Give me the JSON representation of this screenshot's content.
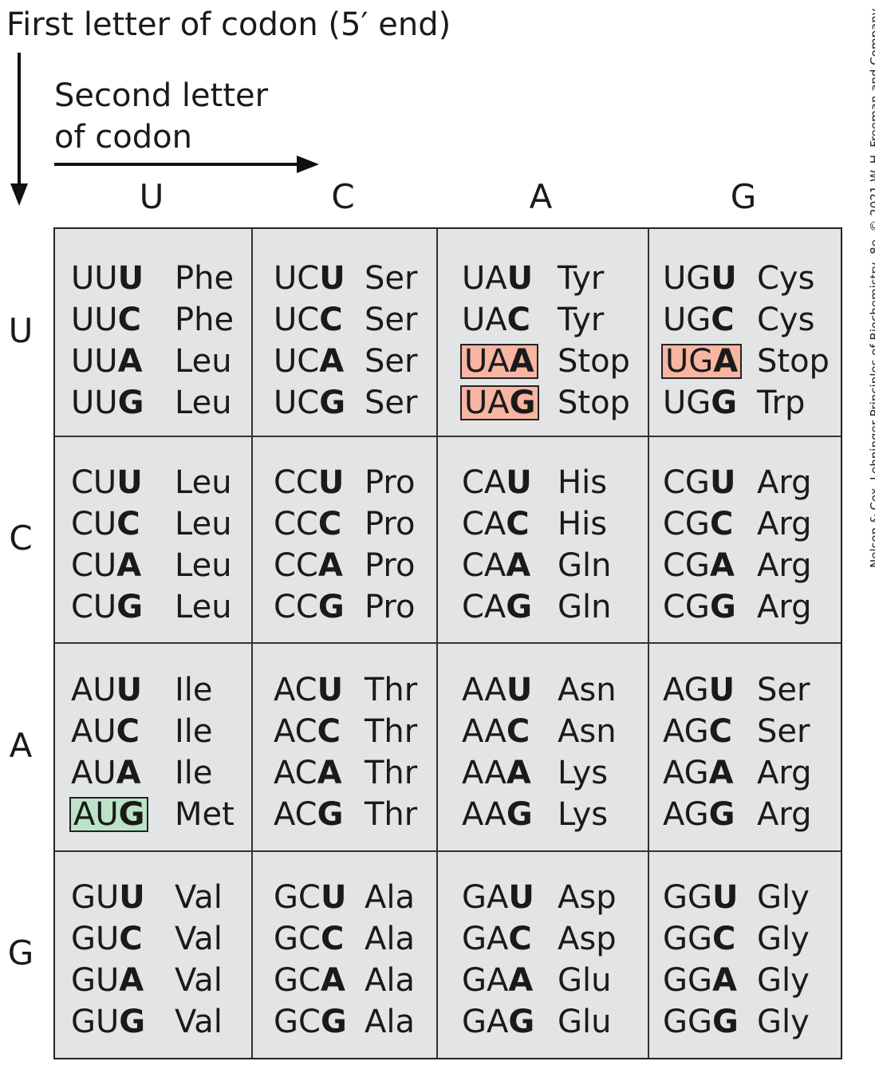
{
  "labels": {
    "first_letter": "First  letter of codon (5′ end)",
    "second_letter_line1": "Second letter",
    "second_letter_line2": "of codon"
  },
  "columns": [
    "U",
    "C",
    "A",
    "G"
  ],
  "rows": [
    "U",
    "C",
    "A",
    "G"
  ],
  "copyright": "Nelson & Cox, Lehninger Principles of Biochemistry, 8e, © 2021 W. H. Freeman and Company",
  "colors": {
    "stop_highlight": "#f7b5a2",
    "start_highlight": "#bde3c6",
    "cell_bg": "#e3e4e6"
  },
  "cells": [
    [
      {
        "codons": [
          {
            "p": "UU",
            "t": "U",
            "aa": "Phe"
          },
          {
            "p": "UU",
            "t": "C",
            "aa": "Phe"
          },
          {
            "p": "UU",
            "t": "A",
            "aa": "Leu"
          },
          {
            "p": "UU",
            "t": "G",
            "aa": "Leu"
          }
        ]
      },
      {
        "codons": [
          {
            "p": "UC",
            "t": "U",
            "aa": "Ser"
          },
          {
            "p": "UC",
            "t": "C",
            "aa": "Ser"
          },
          {
            "p": "UC",
            "t": "A",
            "aa": "Ser"
          },
          {
            "p": "UC",
            "t": "G",
            "aa": "Ser"
          }
        ]
      },
      {
        "codons": [
          {
            "p": "UA",
            "t": "U",
            "aa": "Tyr"
          },
          {
            "p": "UA",
            "t": "C",
            "aa": "Tyr"
          },
          {
            "p": "UA",
            "t": "A",
            "aa": "Stop",
            "mark": "stop"
          },
          {
            "p": "UA",
            "t": "G",
            "aa": "Stop",
            "mark": "stop"
          }
        ]
      },
      {
        "codons": [
          {
            "p": "UG",
            "t": "U",
            "aa": "Cys"
          },
          {
            "p": "UG",
            "t": "C",
            "aa": "Cys"
          },
          {
            "p": "UG",
            "t": "A",
            "aa": "Stop",
            "mark": "stop"
          },
          {
            "p": "UG",
            "t": "G",
            "aa": "Trp"
          }
        ]
      }
    ],
    [
      {
        "codons": [
          {
            "p": "CU",
            "t": "U",
            "aa": "Leu"
          },
          {
            "p": "CU",
            "t": "C",
            "aa": "Leu"
          },
          {
            "p": "CU",
            "t": "A",
            "aa": "Leu"
          },
          {
            "p": "CU",
            "t": "G",
            "aa": "Leu"
          }
        ]
      },
      {
        "codons": [
          {
            "p": "CC",
            "t": "U",
            "aa": "Pro"
          },
          {
            "p": "CC",
            "t": "C",
            "aa": "Pro"
          },
          {
            "p": "CC",
            "t": "A",
            "aa": "Pro"
          },
          {
            "p": "CC",
            "t": "G",
            "aa": "Pro"
          }
        ]
      },
      {
        "codons": [
          {
            "p": "CA",
            "t": "U",
            "aa": "His"
          },
          {
            "p": "CA",
            "t": "C",
            "aa": "His"
          },
          {
            "p": "CA",
            "t": "A",
            "aa": "Gln"
          },
          {
            "p": "CA",
            "t": "G",
            "aa": "Gln"
          }
        ]
      },
      {
        "codons": [
          {
            "p": "CG",
            "t": "U",
            "aa": "Arg"
          },
          {
            "p": "CG",
            "t": "C",
            "aa": "Arg"
          },
          {
            "p": "CG",
            "t": "A",
            "aa": "Arg"
          },
          {
            "p": "CG",
            "t": "G",
            "aa": "Arg"
          }
        ]
      }
    ],
    [
      {
        "codons": [
          {
            "p": "AU",
            "t": "U",
            "aa": "Ile"
          },
          {
            "p": "AU",
            "t": "C",
            "aa": "Ile"
          },
          {
            "p": "AU",
            "t": "A",
            "aa": "Ile"
          },
          {
            "p": "AU",
            "t": "G",
            "aa": "Met",
            "mark": "start"
          }
        ]
      },
      {
        "codons": [
          {
            "p": "AC",
            "t": "U",
            "aa": "Thr"
          },
          {
            "p": "AC",
            "t": "C",
            "aa": "Thr"
          },
          {
            "p": "AC",
            "t": "A",
            "aa": "Thr"
          },
          {
            "p": "AC",
            "t": "G",
            "aa": "Thr"
          }
        ]
      },
      {
        "codons": [
          {
            "p": "AA",
            "t": "U",
            "aa": "Asn"
          },
          {
            "p": "AA",
            "t": "C",
            "aa": "Asn"
          },
          {
            "p": "AA",
            "t": "A",
            "aa": "Lys"
          },
          {
            "p": "AA",
            "t": "G",
            "aa": "Lys"
          }
        ]
      },
      {
        "codons": [
          {
            "p": "AG",
            "t": "U",
            "aa": "Ser"
          },
          {
            "p": "AG",
            "t": "C",
            "aa": "Ser"
          },
          {
            "p": "AG",
            "t": "A",
            "aa": "Arg"
          },
          {
            "p": "AG",
            "t": "G",
            "aa": "Arg"
          }
        ]
      }
    ],
    [
      {
        "codons": [
          {
            "p": "GU",
            "t": "U",
            "aa": "Val"
          },
          {
            "p": "GU",
            "t": "C",
            "aa": "Val"
          },
          {
            "p": "GU",
            "t": "A",
            "aa": "Val"
          },
          {
            "p": "GU",
            "t": "G",
            "aa": "Val"
          }
        ]
      },
      {
        "codons": [
          {
            "p": "GC",
            "t": "U",
            "aa": "Ala"
          },
          {
            "p": "GC",
            "t": "C",
            "aa": "Ala"
          },
          {
            "p": "GC",
            "t": "A",
            "aa": "Ala"
          },
          {
            "p": "GC",
            "t": "G",
            "aa": "Ala"
          }
        ]
      },
      {
        "codons": [
          {
            "p": "GA",
            "t": "U",
            "aa": "Asp"
          },
          {
            "p": "GA",
            "t": "C",
            "aa": "Asp"
          },
          {
            "p": "GA",
            "t": "A",
            "aa": "Glu"
          },
          {
            "p": "GA",
            "t": "G",
            "aa": "Glu"
          }
        ]
      },
      {
        "codons": [
          {
            "p": "GG",
            "t": "U",
            "aa": "Gly"
          },
          {
            "p": "GG",
            "t": "C",
            "aa": "Gly"
          },
          {
            "p": "GG",
            "t": "A",
            "aa": "Gly"
          },
          {
            "p": "GG",
            "t": "G",
            "aa": "Gly"
          }
        ]
      }
    ]
  ]
}
